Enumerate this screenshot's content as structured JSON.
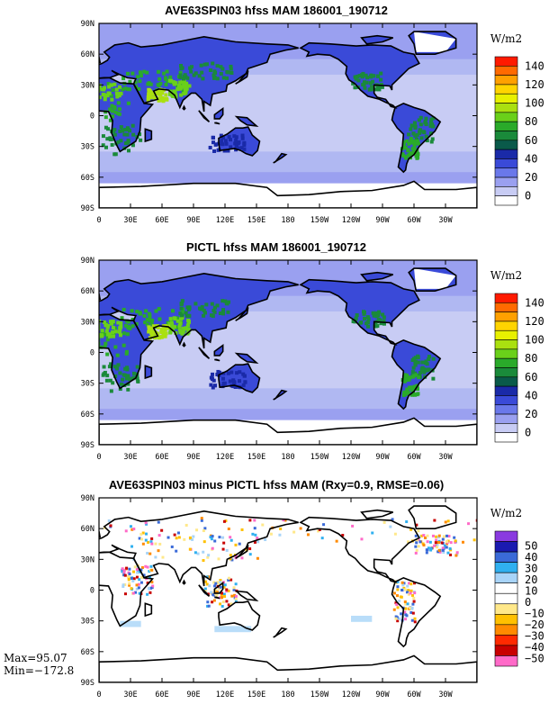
{
  "panels": [
    {
      "title": "AVE63SPIN03 hfss MAM 186001_190712",
      "unit": "W/m2",
      "lat_labels": [
        "90N",
        "60N",
        "30N",
        "0",
        "30S",
        "60S",
        "90S"
      ],
      "lon_labels": [
        "0",
        "30E",
        "60E",
        "90E",
        "120E",
        "150E",
        "180",
        "150W",
        "120W",
        "90W",
        "60W",
        "30W"
      ],
      "colorbar": {
        "labels": [
          "0",
          "20",
          "40",
          "60",
          "80",
          "100",
          "120",
          "140"
        ],
        "colors": [
          "#ffffff",
          "#c8ccf4",
          "#9aa0f0",
          "#6a78ea",
          "#3a4ad8",
          "#1a2aa8",
          "#0a5a4a",
          "#1a8a3a",
          "#2aaa2a",
          "#6ad01a",
          "#aae010",
          "#e8f000",
          "#ffd400",
          "#ffa000",
          "#ff6a00",
          "#ff1a00"
        ]
      }
    },
    {
      "title": "PICTL hfss MAM 186001_190712",
      "unit": "W/m2",
      "lat_labels": [
        "90N",
        "60N",
        "30N",
        "0",
        "30S",
        "60S",
        "90S"
      ],
      "lon_labels": [
        "0",
        "30E",
        "60E",
        "90E",
        "120E",
        "150E",
        "180",
        "150W",
        "120W",
        "90W",
        "60W",
        "30W"
      ],
      "colorbar": {
        "labels": [
          "0",
          "20",
          "40",
          "60",
          "80",
          "100",
          "120",
          "140"
        ],
        "colors": [
          "#ffffff",
          "#c8ccf4",
          "#9aa0f0",
          "#6a78ea",
          "#3a4ad8",
          "#1a2aa8",
          "#0a5a4a",
          "#1a8a3a",
          "#2aaa2a",
          "#6ad01a",
          "#aae010",
          "#e8f000",
          "#ffd400",
          "#ffa000",
          "#ff6a00",
          "#ff1a00"
        ]
      }
    },
    {
      "title": "AVE63SPIN03 minus PICTL hfss MAM (Rxy=0.9, RMSE=0.06)",
      "unit": "W/m2",
      "lat_labels": [
        "90N",
        "60N",
        "30N",
        "0",
        "30S",
        "60S",
        "90S"
      ],
      "lon_labels": [
        "0",
        "30E",
        "60E",
        "90E",
        "120E",
        "150E",
        "180",
        "150W",
        "120W",
        "90W",
        "60W",
        "30W"
      ],
      "colorbar": {
        "labels": [
          "50",
          "40",
          "30",
          "20",
          "10",
          "0",
          "−10",
          "−20",
          "−30",
          "−40",
          "−50"
        ],
        "colors": [
          "#ff6ac8",
          "#c80000",
          "#ff2a00",
          "#ff8a00",
          "#ffc000",
          "#ffe88a",
          "#ffffff",
          "#ffffff",
          "#a8d4f8",
          "#30b0f0",
          "#3a6ad8",
          "#1a1ab0",
          "#8a3ae0"
        ]
      },
      "stats": {
        "max": "Max=95.07",
        "min": "Min=−172.8"
      }
    }
  ],
  "chart_data": [
    {
      "type": "heatmap",
      "title": "AVE63SPIN03 hfss MAM 186001_190712",
      "variable": "hfss",
      "unit": "W/m2",
      "levels": [
        0,
        10,
        20,
        30,
        40,
        50,
        60,
        70,
        80,
        90,
        100,
        110,
        120,
        130,
        140
      ],
      "x_ticks": [
        "0",
        "30E",
        "60E",
        "90E",
        "120E",
        "150E",
        "180",
        "150W",
        "120W",
        "90W",
        "60W",
        "30W"
      ],
      "y_ticks": [
        "90N",
        "60N",
        "30N",
        "0",
        "30S",
        "60S",
        "90S"
      ],
      "xlim": [
        0,
        360
      ],
      "ylim": [
        -90,
        90
      ]
    },
    {
      "type": "heatmap",
      "title": "PICTL hfss MAM 186001_190712",
      "variable": "hfss",
      "unit": "W/m2",
      "levels": [
        0,
        10,
        20,
        30,
        40,
        50,
        60,
        70,
        80,
        90,
        100,
        110,
        120,
        130,
        140
      ],
      "x_ticks": [
        "0",
        "30E",
        "60E",
        "90E",
        "120E",
        "150E",
        "180",
        "150W",
        "120W",
        "90W",
        "60W",
        "30W"
      ],
      "y_ticks": [
        "90N",
        "60N",
        "30N",
        "0",
        "30S",
        "60S",
        "90S"
      ],
      "xlim": [
        0,
        360
      ],
      "ylim": [
        -90,
        90
      ]
    },
    {
      "type": "heatmap",
      "title": "AVE63SPIN03 minus PICTL hfss MAM (Rxy=0.9, RMSE=0.06)",
      "variable": "hfss difference",
      "unit": "W/m2",
      "levels": [
        -50,
        -40,
        -30,
        -20,
        -10,
        0,
        10,
        20,
        30,
        40,
        50
      ],
      "rxy": 0.9,
      "rmse": 0.06,
      "max": 95.07,
      "min": -172.8,
      "x_ticks": [
        "0",
        "30E",
        "60E",
        "90E",
        "120E",
        "150E",
        "180",
        "150W",
        "120W",
        "90W",
        "60W",
        "30W"
      ],
      "y_ticks": [
        "90N",
        "60N",
        "30N",
        "0",
        "30S",
        "60S",
        "90S"
      ],
      "xlim": [
        0,
        360
      ],
      "ylim": [
        -90,
        90
      ]
    }
  ]
}
